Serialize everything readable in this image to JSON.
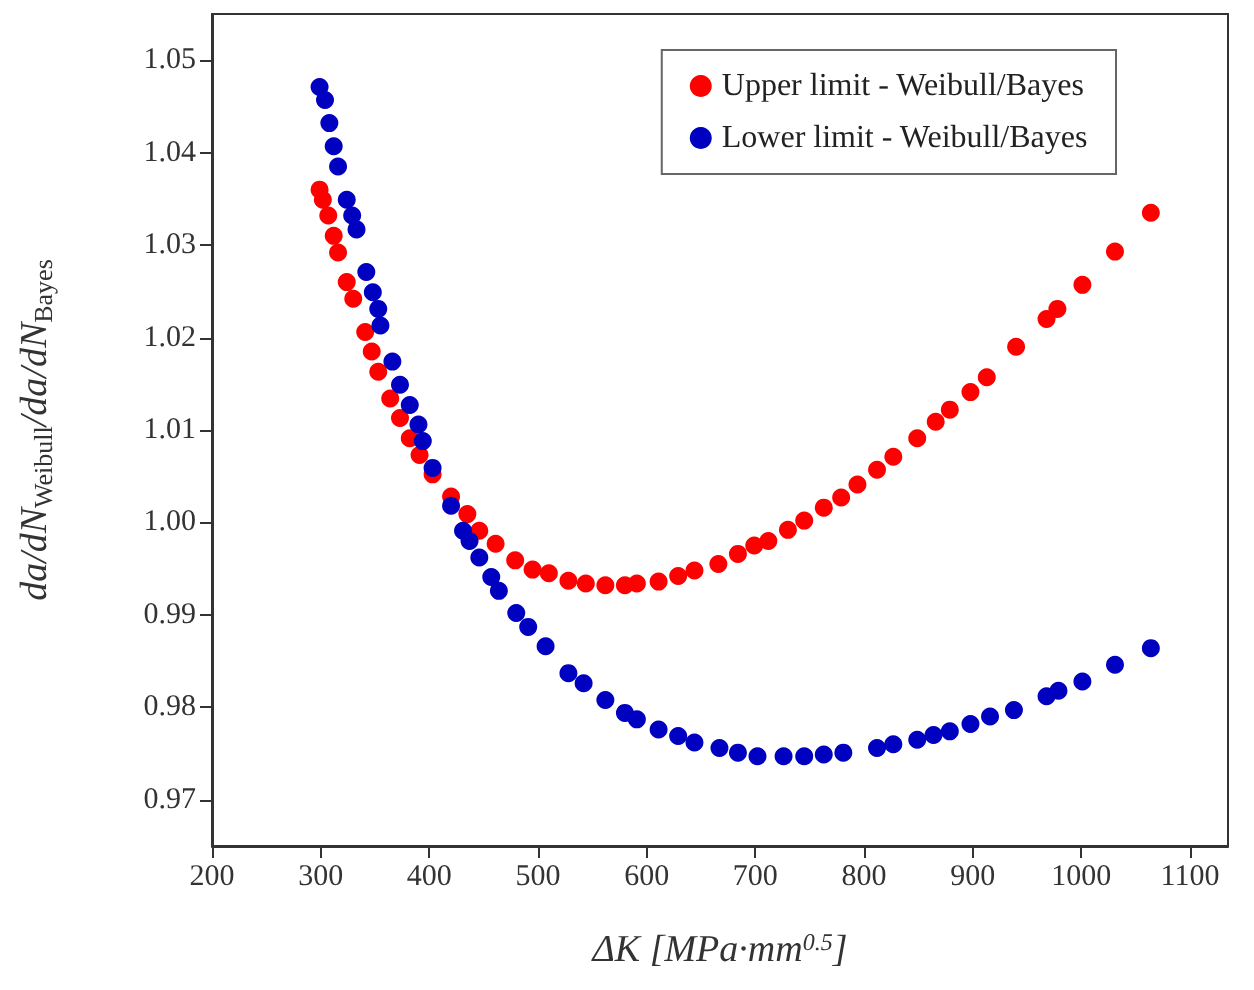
{
  "chart_data": {
    "type": "scatter",
    "xlabel": "ΔK [MPa·mm$^{0.5}$]",
    "ylabel": "da/dN$_{Weibull}$/da/dN$_{Bayes}$",
    "xlim": [
      200,
      1135
    ],
    "ylim": [
      0.965,
      1.055
    ],
    "xticks": [
      200,
      300,
      400,
      500,
      600,
      700,
      800,
      900,
      1000,
      1100
    ],
    "yticks": [
      0.97,
      0.98,
      0.99,
      {
        "value": 1.0,
        "label": "1.00"
      },
      1.01,
      1.02,
      1.03,
      1.04,
      1.05
    ],
    "grid": false,
    "legend": "top right",
    "marker": "circle",
    "series": [
      {
        "name": "Upper limit - Weibull/Bayes",
        "color": "#ff0000",
        "x": [
          299,
          302,
          307,
          312,
          316,
          324,
          330,
          341,
          347,
          353,
          364,
          373,
          382,
          391,
          403,
          420,
          435,
          446,
          461,
          479,
          495,
          510,
          528,
          544,
          562,
          580,
          591,
          611,
          629,
          644,
          666,
          684,
          699,
          712,
          730,
          745,
          763,
          779,
          794,
          812,
          827,
          849,
          866,
          879,
          898,
          913,
          940,
          968,
          978,
          1001,
          1031,
          1064
        ],
        "values": [
          1.036,
          1.0349,
          1.0332,
          1.031,
          1.0292,
          1.026,
          1.0242,
          1.0206,
          1.0185,
          1.0163,
          1.0134,
          1.0113,
          1.0091,
          1.0073,
          1.0052,
          1.0028,
          1.0009,
          0.9991,
          0.9977,
          0.9959,
          0.9949,
          0.9945,
          0.9937,
          0.9934,
          0.9932,
          0.9932,
          0.9934,
          0.9936,
          0.9942,
          0.9948,
          0.9955,
          0.9966,
          0.9975,
          0.998,
          0.9992,
          1.0002,
          1.0016,
          1.0027,
          1.0041,
          1.0057,
          1.0071,
          1.0091,
          1.0109,
          1.0122,
          1.0141,
          1.0157,
          1.019,
          1.022,
          1.0231,
          1.0257,
          1.0293,
          1.0335
        ]
      },
      {
        "name": "Lower limit - Weibull/Bayes",
        "color": "#0000c0",
        "x": [
          299,
          304,
          308,
          312,
          316,
          324,
          329,
          333,
          342,
          348,
          353,
          355,
          366,
          373,
          382,
          390,
          394,
          403,
          420,
          431,
          437,
          446,
          457,
          464,
          480,
          491,
          507,
          528,
          542,
          562,
          580,
          591,
          611,
          629,
          644,
          667,
          684,
          702,
          726,
          745,
          763,
          781,
          812,
          827,
          849,
          864,
          879,
          898,
          916,
          938,
          968,
          979,
          1001,
          1031,
          1064
        ],
        "values": [
          1.0471,
          1.0457,
          1.0432,
          1.0407,
          1.0385,
          1.0349,
          1.0332,
          1.0317,
          1.0271,
          1.0249,
          1.0231,
          1.0213,
          1.0174,
          1.0149,
          1.0127,
          1.0106,
          1.0088,
          1.0059,
          1.0018,
          0.9991,
          0.998,
          0.9962,
          0.9941,
          0.9926,
          0.9902,
          0.9887,
          0.9866,
          0.9837,
          0.9826,
          0.9808,
          0.9794,
          0.9787,
          0.9776,
          0.9769,
          0.9762,
          0.9756,
          0.9751,
          0.9747,
          0.9747,
          0.9747,
          0.9749,
          0.9751,
          0.9756,
          0.976,
          0.9765,
          0.977,
          0.9774,
          0.9782,
          0.979,
          0.9797,
          0.9812,
          0.9818,
          0.9828,
          0.9846,
          0.9864
        ]
      }
    ]
  }
}
